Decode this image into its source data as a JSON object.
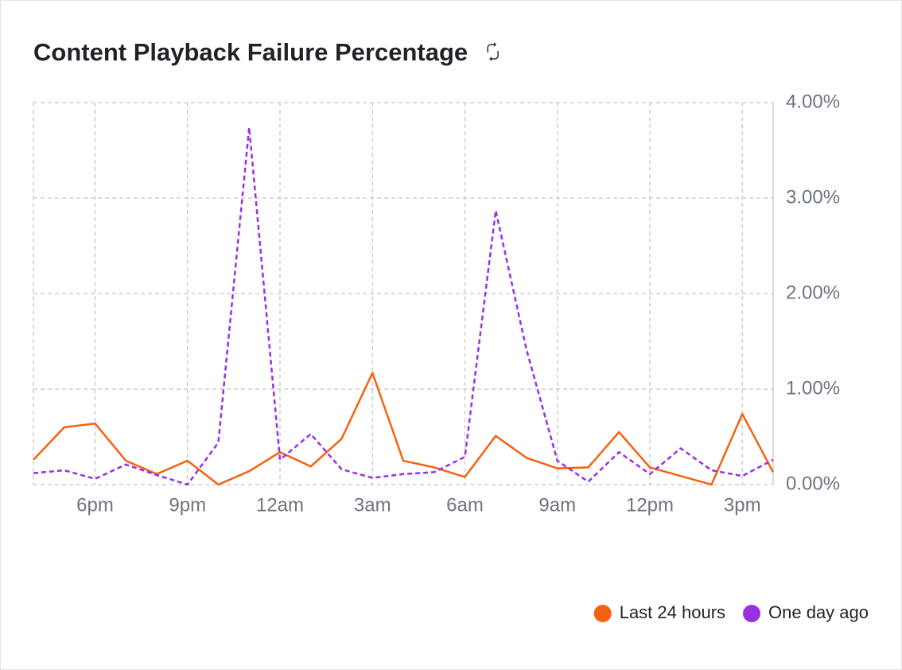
{
  "chart_data": {
    "type": "line",
    "title": "Content Playback Failure Percentage",
    "x": [
      0,
      1,
      2,
      3,
      4,
      5,
      6,
      7,
      8,
      9,
      10,
      11,
      12,
      13,
      14,
      15,
      16,
      17,
      18,
      19,
      20,
      21,
      22,
      23,
      24
    ],
    "xlim": [
      0,
      24
    ],
    "xticks": [
      {
        "value": 2,
        "label": "6pm"
      },
      {
        "value": 5,
        "label": "9pm"
      },
      {
        "value": 8,
        "label": "12am"
      },
      {
        "value": 11,
        "label": "3am"
      },
      {
        "value": 14,
        "label": "6am"
      },
      {
        "value": 17,
        "label": "9am"
      },
      {
        "value": 20,
        "label": "12pm"
      },
      {
        "value": 23,
        "label": "3pm"
      }
    ],
    "ylim": [
      0,
      4
    ],
    "yticks": [
      {
        "value": 0,
        "label": "0.00%"
      },
      {
        "value": 1,
        "label": "1.00%"
      },
      {
        "value": 2,
        "label": "2.00%"
      },
      {
        "value": 3,
        "label": "3.00%"
      },
      {
        "value": 4,
        "label": "4.00%"
      }
    ],
    "grid": true,
    "legend": "bottom-right",
    "series": [
      {
        "name": "Last 24 hours",
        "color": "#f5620f",
        "dashed": false,
        "values": [
          0.26,
          0.6,
          0.64,
          0.25,
          0.11,
          0.25,
          0.0,
          0.14,
          0.34,
          0.19,
          0.48,
          1.17,
          0.25,
          0.18,
          0.08,
          0.51,
          0.28,
          0.17,
          0.18,
          0.55,
          0.18,
          0.09,
          0.0,
          0.74,
          0.13
        ]
      },
      {
        "name": "One day ago",
        "color": "#9b2fe3",
        "dashed": true,
        "values": [
          0.12,
          0.15,
          0.06,
          0.21,
          0.1,
          0.0,
          0.44,
          3.74,
          0.26,
          0.53,
          0.16,
          0.07,
          0.11,
          0.13,
          0.29,
          2.87,
          1.41,
          0.25,
          0.03,
          0.34,
          0.11,
          0.38,
          0.15,
          0.09,
          0.26
        ]
      }
    ]
  }
}
